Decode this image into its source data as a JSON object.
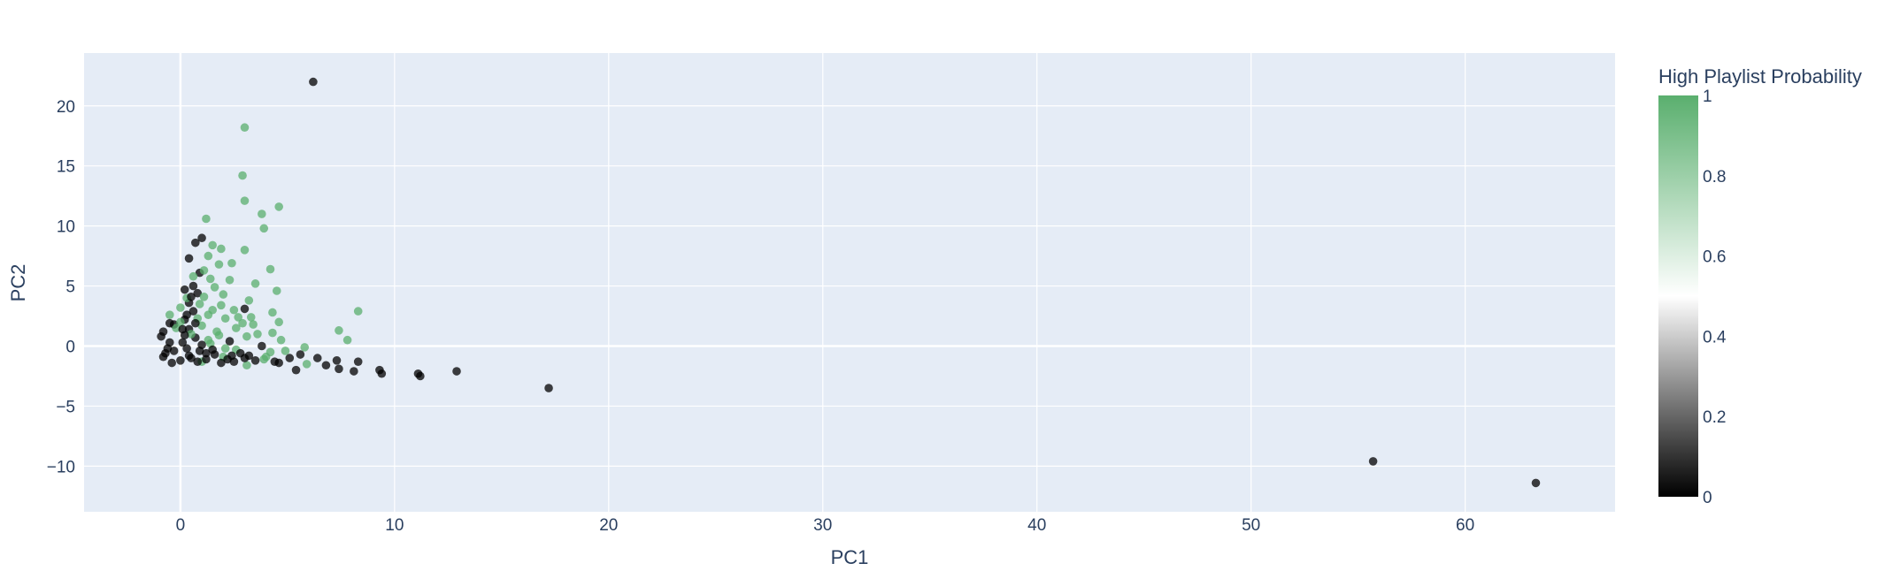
{
  "chart_data": {
    "type": "scatter",
    "title": "",
    "xlabel": "PC1",
    "ylabel": "PC2",
    "xlim": [
      -4.5,
      67
    ],
    "ylim": [
      -13.8,
      24.4
    ],
    "xticks": [
      0,
      10,
      20,
      30,
      40,
      50,
      60
    ],
    "yticks": [
      -10,
      -5,
      0,
      5,
      10,
      15,
      20
    ],
    "xtick_labels": [
      "0",
      "10",
      "20",
      "30",
      "40",
      "50",
      "60"
    ],
    "ytick_labels": [
      "−10",
      "−5",
      "0",
      "5",
      "10",
      "15",
      "20"
    ],
    "grid": true,
    "plot_bg": "#e5ecf6",
    "grid_color": "#ffffff",
    "colorbar": {
      "title": "High Playlist Probability",
      "range": [
        0,
        1
      ],
      "ticks": [
        0,
        0.2,
        0.4,
        0.6,
        0.8,
        1
      ],
      "tick_labels": [
        "0",
        "0.2",
        "0.4",
        "0.6",
        "0.8",
        "1"
      ],
      "colorscale": [
        [
          0,
          "#000000"
        ],
        [
          0.5,
          "#ffffff"
        ],
        [
          1,
          "#5aaf6e"
        ]
      ]
    },
    "marker_opacity": 0.75,
    "points": [
      {
        "x": 6.2,
        "y": 22.0,
        "c": 0
      },
      {
        "x": 3.0,
        "y": 18.2,
        "c": 1
      },
      {
        "x": 2.9,
        "y": 14.2,
        "c": 1
      },
      {
        "x": 3.0,
        "y": 12.1,
        "c": 1
      },
      {
        "x": 4.6,
        "y": 11.6,
        "c": 1
      },
      {
        "x": 3.8,
        "y": 11.0,
        "c": 1
      },
      {
        "x": 1.2,
        "y": 10.6,
        "c": 1
      },
      {
        "x": 3.9,
        "y": 9.8,
        "c": 1
      },
      {
        "x": 1.0,
        "y": 9.0,
        "c": 0
      },
      {
        "x": 0.7,
        "y": 8.6,
        "c": 0
      },
      {
        "x": 1.5,
        "y": 8.4,
        "c": 1
      },
      {
        "x": 1.9,
        "y": 8.1,
        "c": 1
      },
      {
        "x": 3.0,
        "y": 8.0,
        "c": 1
      },
      {
        "x": 0.4,
        "y": 7.3,
        "c": 0
      },
      {
        "x": 1.3,
        "y": 7.5,
        "c": 1
      },
      {
        "x": 2.4,
        "y": 6.9,
        "c": 1
      },
      {
        "x": 1.8,
        "y": 6.8,
        "c": 1
      },
      {
        "x": 4.2,
        "y": 6.4,
        "c": 1
      },
      {
        "x": 0.9,
        "y": 6.1,
        "c": 0
      },
      {
        "x": 3.5,
        "y": 5.2,
        "c": 1
      },
      {
        "x": 2.3,
        "y": 5.5,
        "c": 1
      },
      {
        "x": 0.6,
        "y": 5.0,
        "c": 0
      },
      {
        "x": 0.2,
        "y": 4.7,
        "c": 0
      },
      {
        "x": 1.6,
        "y": 4.9,
        "c": 1
      },
      {
        "x": 4.5,
        "y": 4.6,
        "c": 1
      },
      {
        "x": 0.8,
        "y": 4.4,
        "c": 0
      },
      {
        "x": 1.1,
        "y": 4.1,
        "c": 1
      },
      {
        "x": 3.2,
        "y": 3.8,
        "c": 1
      },
      {
        "x": 0.4,
        "y": 3.6,
        "c": 0
      },
      {
        "x": 1.9,
        "y": 3.4,
        "c": 1
      },
      {
        "x": 0.0,
        "y": 3.2,
        "c": 1
      },
      {
        "x": 3.0,
        "y": 3.1,
        "c": 0
      },
      {
        "x": 8.3,
        "y": 2.9,
        "c": 1
      },
      {
        "x": 4.3,
        "y": 2.8,
        "c": 1
      },
      {
        "x": 0.6,
        "y": 2.9,
        "c": 0
      },
      {
        "x": -0.5,
        "y": 2.6,
        "c": 1
      },
      {
        "x": 1.3,
        "y": 2.6,
        "c": 1
      },
      {
        "x": 2.1,
        "y": 2.3,
        "c": 1
      },
      {
        "x": 0.2,
        "y": 2.2,
        "c": 0
      },
      {
        "x": 4.6,
        "y": 2.0,
        "c": 1
      },
      {
        "x": 3.4,
        "y": 1.8,
        "c": 1
      },
      {
        "x": -0.3,
        "y": 1.8,
        "c": 0
      },
      {
        "x": 1.0,
        "y": 1.7,
        "c": 1
      },
      {
        "x": 2.6,
        "y": 1.5,
        "c": 1
      },
      {
        "x": 7.4,
        "y": 1.3,
        "c": 1
      },
      {
        "x": 0.4,
        "y": 1.4,
        "c": 0
      },
      {
        "x": 4.3,
        "y": 1.1,
        "c": 1
      },
      {
        "x": -0.8,
        "y": 1.2,
        "c": 0
      },
      {
        "x": 1.8,
        "y": 0.9,
        "c": 1
      },
      {
        "x": 3.1,
        "y": 0.8,
        "c": 1
      },
      {
        "x": 0.7,
        "y": 0.7,
        "c": 0
      },
      {
        "x": 7.8,
        "y": 0.5,
        "c": 1
      },
      {
        "x": 2.3,
        "y": 0.4,
        "c": 0
      },
      {
        "x": 4.7,
        "y": 0.5,
        "c": 1
      },
      {
        "x": -0.5,
        "y": 0.3,
        "c": 0
      },
      {
        "x": 1.4,
        "y": 0.2,
        "c": 1
      },
      {
        "x": 3.8,
        "y": 0.0,
        "c": 0
      },
      {
        "x": 5.8,
        "y": -0.1,
        "c": 1
      },
      {
        "x": 0.3,
        "y": -0.2,
        "c": 0
      },
      {
        "x": 2.6,
        "y": -0.3,
        "c": 1
      },
      {
        "x": 4.2,
        "y": -0.5,
        "c": 1
      },
      {
        "x": 1.2,
        "y": -0.6,
        "c": 0
      },
      {
        "x": -0.7,
        "y": -0.6,
        "c": 0
      },
      {
        "x": 5.6,
        "y": -0.7,
        "c": 0
      },
      {
        "x": 3.2,
        "y": -0.8,
        "c": 0
      },
      {
        "x": 2.0,
        "y": -0.9,
        "c": 1
      },
      {
        "x": 0.5,
        "y": -1.0,
        "c": 0
      },
      {
        "x": 5.1,
        "y": -1.0,
        "c": 0
      },
      {
        "x": 6.4,
        "y": -1.0,
        "c": 0
      },
      {
        "x": 3.9,
        "y": -1.1,
        "c": 1
      },
      {
        "x": 7.3,
        "y": -1.2,
        "c": 0
      },
      {
        "x": 8.3,
        "y": -1.3,
        "c": 0
      },
      {
        "x": 2.5,
        "y": -1.3,
        "c": 0
      },
      {
        "x": 4.4,
        "y": -1.3,
        "c": 0
      },
      {
        "x": 1.0,
        "y": -1.3,
        "c": 1
      },
      {
        "x": -0.4,
        "y": -1.4,
        "c": 0
      },
      {
        "x": 5.9,
        "y": -1.5,
        "c": 1
      },
      {
        "x": 6.8,
        "y": -1.6,
        "c": 0
      },
      {
        "x": 3.1,
        "y": -1.6,
        "c": 1
      },
      {
        "x": 7.4,
        "y": -1.9,
        "c": 0
      },
      {
        "x": 5.4,
        "y": -2.0,
        "c": 0
      },
      {
        "x": 8.1,
        "y": -2.1,
        "c": 0
      },
      {
        "x": 9.3,
        "y": -2.0,
        "c": 0
      },
      {
        "x": 9.4,
        "y": -2.3,
        "c": 0
      },
      {
        "x": 11.1,
        "y": -2.3,
        "c": 0
      },
      {
        "x": 11.2,
        "y": -2.5,
        "c": 0
      },
      {
        "x": 12.9,
        "y": -2.1,
        "c": 0
      },
      {
        "x": 17.2,
        "y": -3.5,
        "c": 0
      },
      {
        "x": 55.7,
        "y": -9.6,
        "c": 0
      },
      {
        "x": 63.3,
        "y": -11.4,
        "c": 0
      },
      {
        "x": -0.9,
        "y": 0.8,
        "c": 0
      },
      {
        "x": -0.6,
        "y": -0.2,
        "c": 0
      },
      {
        "x": 0.1,
        "y": 0.3,
        "c": 0
      },
      {
        "x": 0.9,
        "y": -0.4,
        "c": 0
      },
      {
        "x": 1.6,
        "y": -0.7,
        "c": 0
      },
      {
        "x": 2.2,
        "y": -1.1,
        "c": 0
      },
      {
        "x": 0.8,
        "y": 2.3,
        "c": 1
      },
      {
        "x": 1.5,
        "y": 3.0,
        "c": 1
      },
      {
        "x": 2.7,
        "y": 2.4,
        "c": 1
      },
      {
        "x": 0.3,
        "y": 4.0,
        "c": 1
      },
      {
        "x": 1.4,
        "y": 5.6,
        "c": 1
      },
      {
        "x": 2.0,
        "y": 4.3,
        "c": 1
      },
      {
        "x": 0.9,
        "y": 3.5,
        "c": 1
      },
      {
        "x": 1.7,
        "y": 1.2,
        "c": 1
      },
      {
        "x": 0.5,
        "y": 1.0,
        "c": 1
      },
      {
        "x": 2.9,
        "y": 1.9,
        "c": 1
      },
      {
        "x": 3.6,
        "y": 1.0,
        "c": 1
      },
      {
        "x": 4.9,
        "y": -0.4,
        "c": 1
      },
      {
        "x": -0.2,
        "y": 1.5,
        "c": 1
      },
      {
        "x": 1.1,
        "y": 6.3,
        "c": 1
      },
      {
        "x": 0.6,
        "y": 5.8,
        "c": 1
      },
      {
        "x": 2.5,
        "y": 3.0,
        "c": 1
      },
      {
        "x": 3.3,
        "y": 2.4,
        "c": 1
      },
      {
        "x": 0.0,
        "y": 2.0,
        "c": 1
      },
      {
        "x": 1.3,
        "y": 0.5,
        "c": 1
      },
      {
        "x": 2.1,
        "y": -0.2,
        "c": 1
      },
      {
        "x": 4.0,
        "y": -0.9,
        "c": 1
      },
      {
        "x": 0.4,
        "y": -0.8,
        "c": 0
      },
      {
        "x": 1.2,
        "y": -1.1,
        "c": 0
      },
      {
        "x": 2.8,
        "y": -0.6,
        "c": 0
      },
      {
        "x": 0.0,
        "y": -1.2,
        "c": 0
      },
      {
        "x": -0.8,
        "y": -0.9,
        "c": 0
      },
      {
        "x": 1.9,
        "y": -1.4,
        "c": 0
      },
      {
        "x": 3.5,
        "y": -1.2,
        "c": 0
      },
      {
        "x": 0.7,
        "y": 1.9,
        "c": 0
      },
      {
        "x": 0.3,
        "y": 2.6,
        "c": 0
      },
      {
        "x": 0.5,
        "y": 4.1,
        "c": 0
      },
      {
        "x": 0.2,
        "y": 0.9,
        "c": 0
      },
      {
        "x": -0.3,
        "y": -0.4,
        "c": 0
      },
      {
        "x": 1.0,
        "y": 0.1,
        "c": 0
      },
      {
        "x": 1.5,
        "y": -0.3,
        "c": 0
      },
      {
        "x": 2.4,
        "y": -0.8,
        "c": 0
      },
      {
        "x": 3.0,
        "y": -1.0,
        "c": 0
      },
      {
        "x": 4.6,
        "y": -1.4,
        "c": 0
      },
      {
        "x": 0.8,
        "y": -1.3,
        "c": 0
      },
      {
        "x": -0.5,
        "y": 1.9,
        "c": 0
      },
      {
        "x": 0.1,
        "y": 1.4,
        "c": 0
      }
    ]
  }
}
